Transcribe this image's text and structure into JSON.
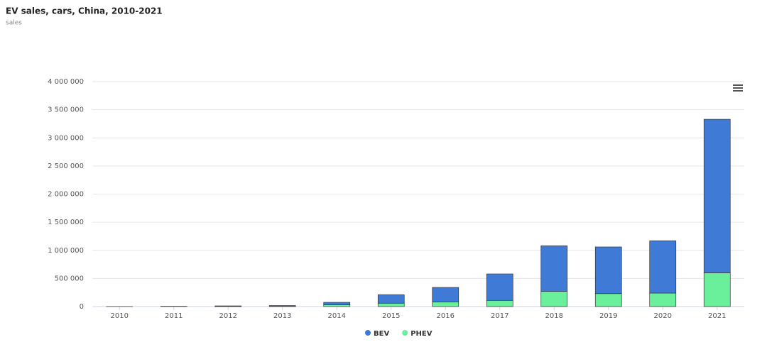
{
  "chart_data": {
    "type": "stacked-bar",
    "title": "EV sales, cars, China, 2010-2021",
    "subtitle": "sales",
    "categories": [
      "2010",
      "2011",
      "2012",
      "2013",
      "2014",
      "2015",
      "2016",
      "2017",
      "2018",
      "2019",
      "2020",
      "2021"
    ],
    "series": [
      {
        "name": "PHEV",
        "color": "#6af09a",
        "values": [
          0,
          0,
          2000,
          3000,
          30000,
          60000,
          80000,
          110000,
          270000,
          230000,
          240000,
          600000
        ]
      },
      {
        "name": "BEV",
        "color": "#3f7bd6",
        "values": [
          1000,
          5000,
          10000,
          15000,
          45000,
          150000,
          260000,
          470000,
          810000,
          830000,
          930000,
          2730000
        ]
      }
    ],
    "ylim": [
      0,
      4000000
    ],
    "yticks": [
      0,
      {
        "value": 500000,
        "label": "500 000"
      },
      {
        "value": 1000000,
        "label": "1 000 000"
      },
      {
        "value": 1500000,
        "label": "1 500 000"
      },
      {
        "value": 2000000,
        "label": "2 000 000"
      },
      {
        "value": 2500000,
        "label": "2 500 000"
      },
      {
        "value": 3000000,
        "label": "3 000 000"
      },
      {
        "value": 3500000,
        "label": "3 500 000"
      },
      {
        "value": 4000000,
        "label": "4 000 000"
      }
    ],
    "grid": true,
    "legend": "bottom"
  }
}
